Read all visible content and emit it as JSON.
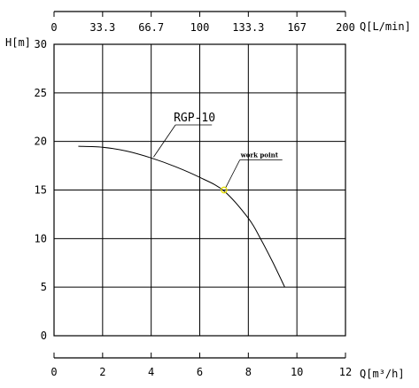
{
  "chart_data": {
    "type": "line",
    "ylabel": "H[m]",
    "xlabel": "Q[m³/h]",
    "x2label": "Q[L/min]",
    "xlim": [
      0,
      12
    ],
    "ylim": [
      0,
      30
    ],
    "x_ticks": [
      0,
      2,
      4,
      6,
      8,
      10,
      12
    ],
    "y_ticks": [
      0,
      5,
      10,
      15,
      20,
      25,
      30
    ],
    "x2_ticks": [
      "0",
      "33.3",
      "66.7",
      "100",
      "133.3",
      "167",
      "200"
    ],
    "grid": true,
    "series": [
      {
        "name": "RGP-10",
        "x": [
          1.0,
          2.0,
          3.0,
          4.0,
          5.0,
          6.0,
          7.0,
          8.0,
          8.5,
          9.0,
          9.5
        ],
        "y": [
          19.5,
          19.4,
          19.0,
          18.3,
          17.4,
          16.3,
          14.9,
          12.1,
          10.0,
          7.6,
          5.0
        ]
      }
    ],
    "annotations": [
      {
        "text": "work point",
        "x": 7.0,
        "y": 15.0
      }
    ],
    "colors": {
      "curve": "#000000",
      "grid": "#000000",
      "work_point": "#e8e000"
    }
  }
}
